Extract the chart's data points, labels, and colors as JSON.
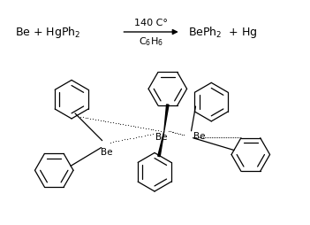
{
  "bg_color": "#ffffff",
  "text_color": "#000000",
  "figsize": [
    3.51,
    2.54
  ],
  "dpi": 100,
  "reaction": {
    "reactants_text": "Be + HgPh",
    "reactants_sub": "2",
    "above_arrow": "140 C°",
    "below_arrow": "C₆H₆",
    "products_text": "BePh",
    "products_sub": "2",
    "products_rest": "  + Hg"
  }
}
